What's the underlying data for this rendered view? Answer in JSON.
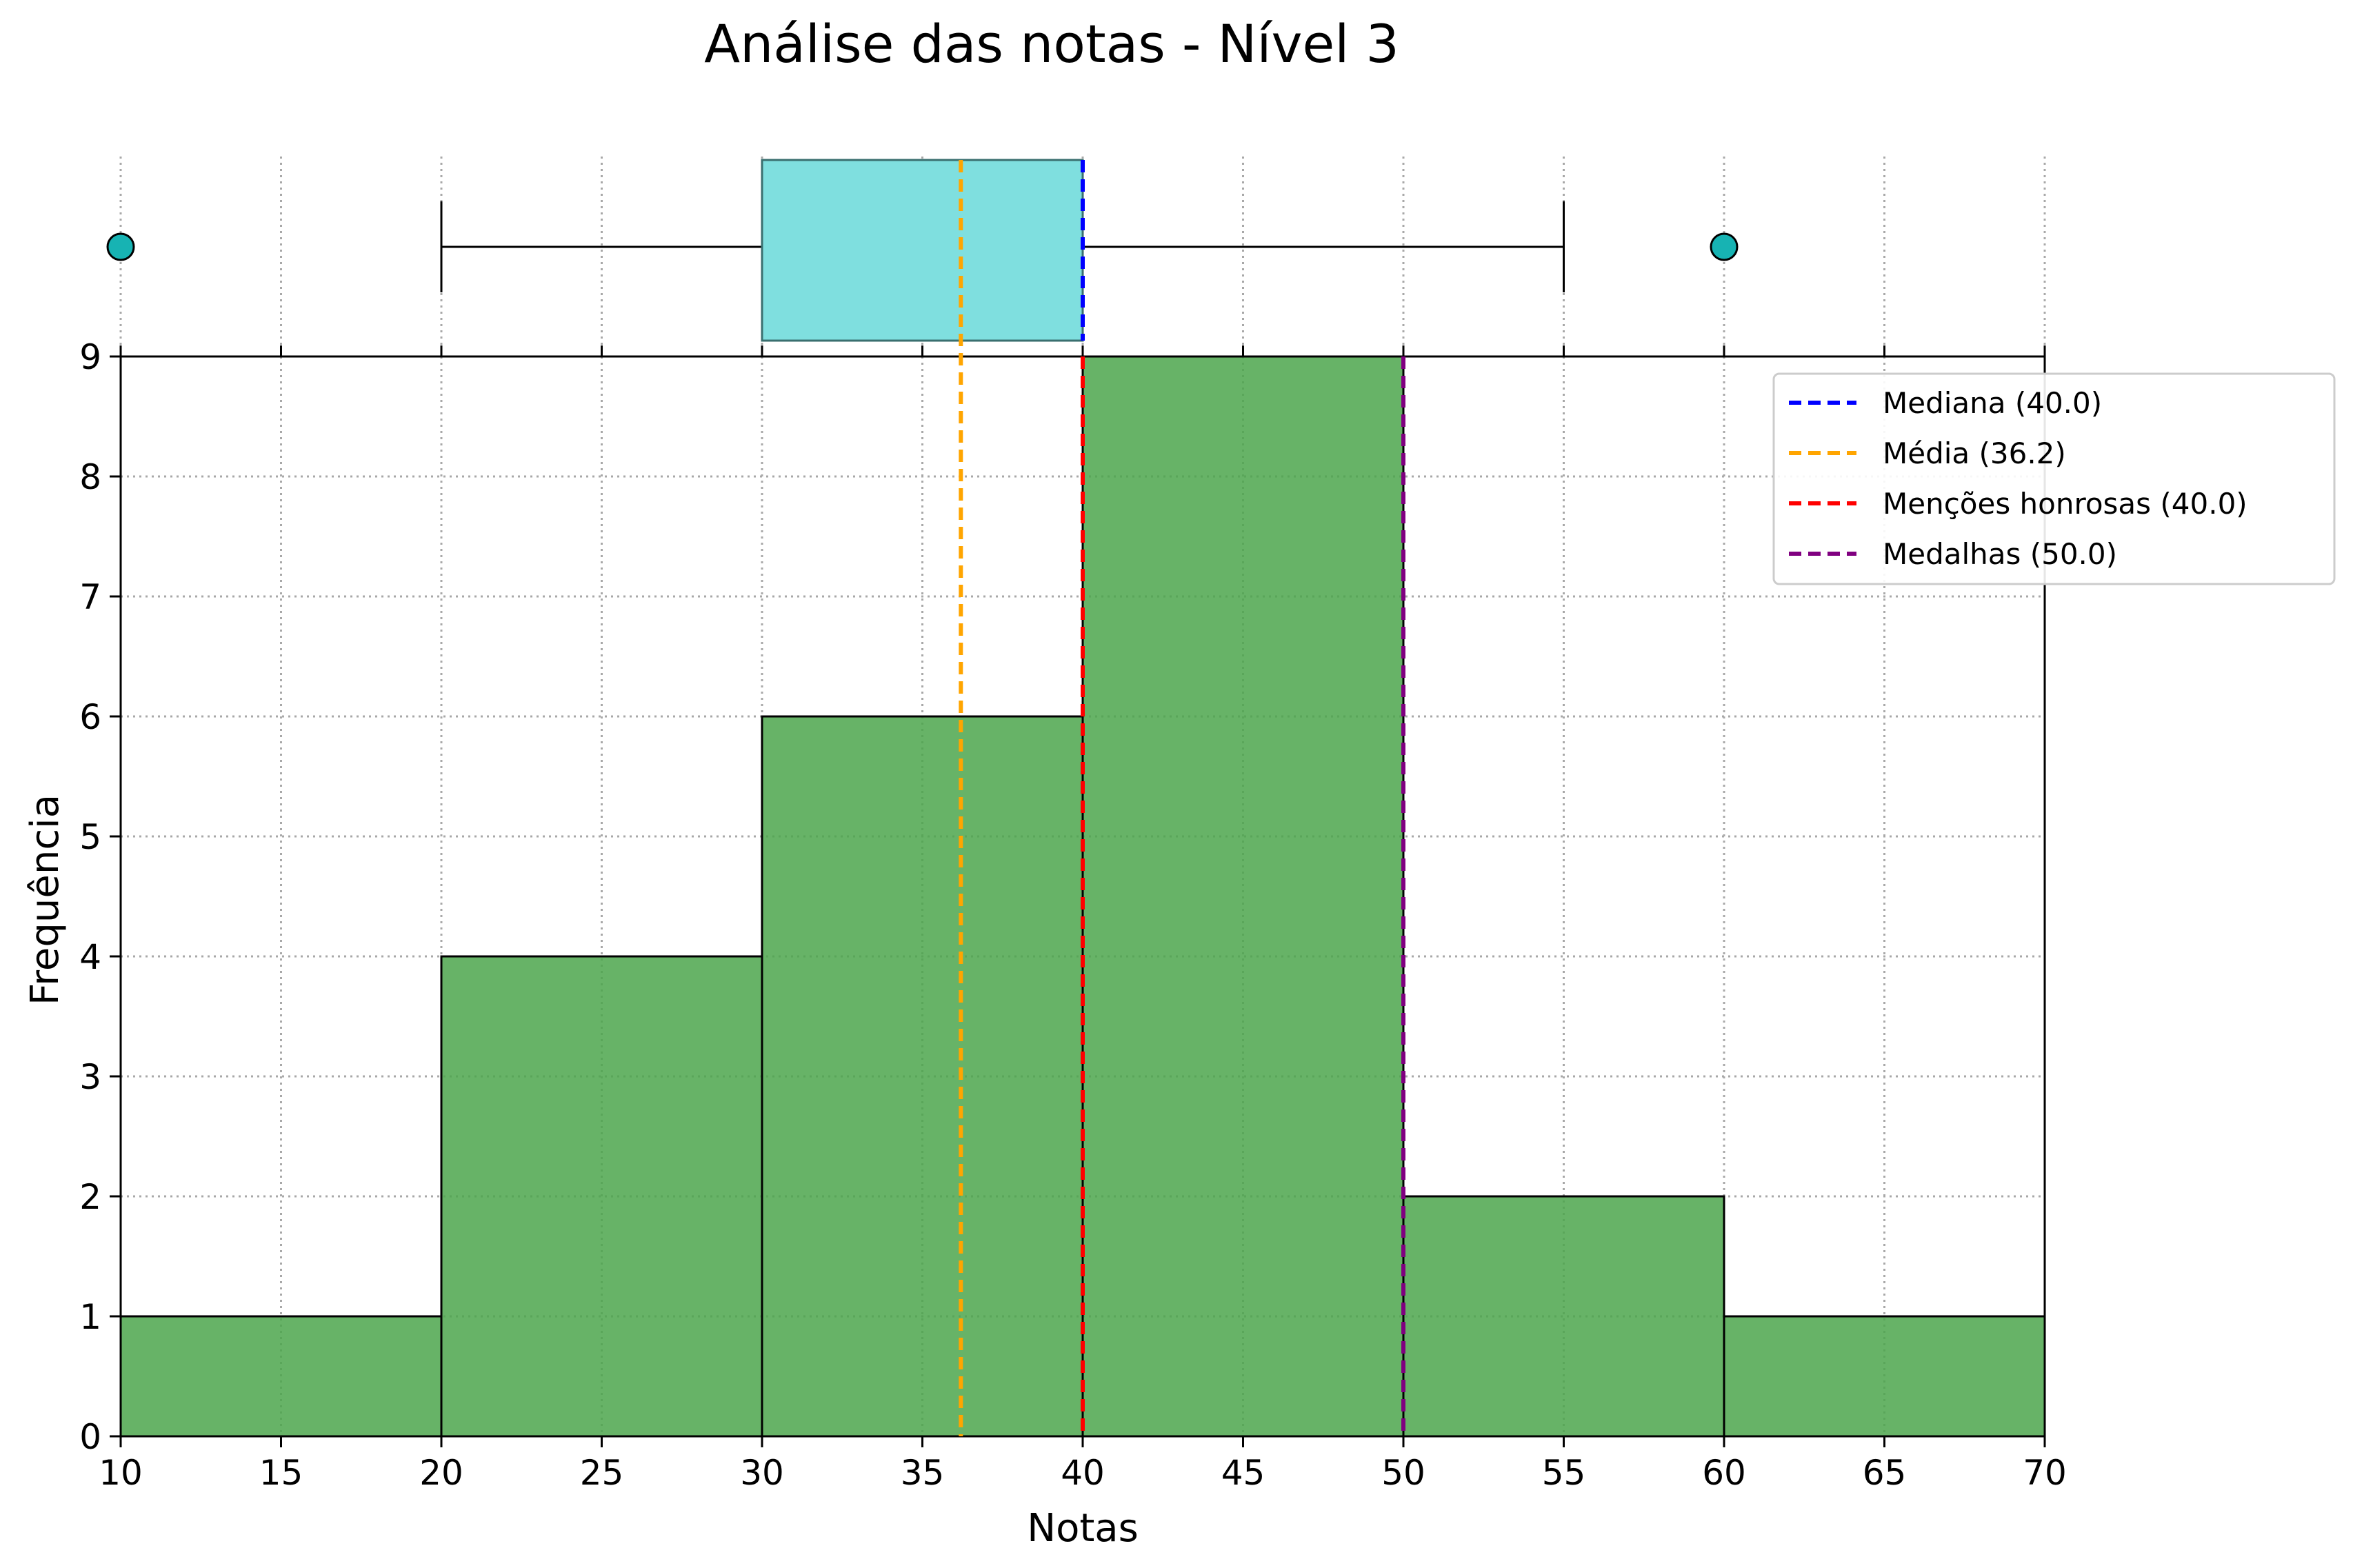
{
  "chart_data": {
    "type": "histogram-with-boxplot",
    "title": "Análise das notas - Nível 3",
    "xlabel": "Notas",
    "ylabel": "Frequência",
    "xlim": [
      10,
      70
    ],
    "ylim": [
      0,
      9
    ],
    "xticks": [
      10,
      15,
      20,
      25,
      30,
      35,
      40,
      45,
      50,
      55,
      60,
      65,
      70
    ],
    "yticks": [
      0,
      1,
      2,
      3,
      4,
      5,
      6,
      7,
      8,
      9
    ],
    "grid": true,
    "histogram": {
      "bins": [
        [
          10,
          20
        ],
        [
          20,
          30
        ],
        [
          30,
          40
        ],
        [
          40,
          50
        ],
        [
          50,
          60
        ],
        [
          60,
          70
        ]
      ],
      "counts": [
        1,
        4,
        6,
        9,
        2,
        1
      ],
      "color": "#4ca64c"
    },
    "boxplot": {
      "whisker_low": 20,
      "q1": 30,
      "median": 40,
      "q3": 40,
      "whisker_high": 55,
      "outliers": [
        10,
        60
      ],
      "box_color": "#7fdfdf",
      "outlier_color": "#17b3b3"
    },
    "reference_lines": [
      {
        "label": "Mediana (40.0)",
        "value": 40.0,
        "color": "#0000ff"
      },
      {
        "label": "Média (36.2)",
        "value": 36.2,
        "color": "#ffa500"
      },
      {
        "label": "Menções honrosas (40.0)",
        "value": 40.0,
        "color": "#ff0000"
      },
      {
        "label": "Medalhas (50.0)",
        "value": 50.0,
        "color": "#800080"
      }
    ],
    "legend_position": "top-right"
  }
}
